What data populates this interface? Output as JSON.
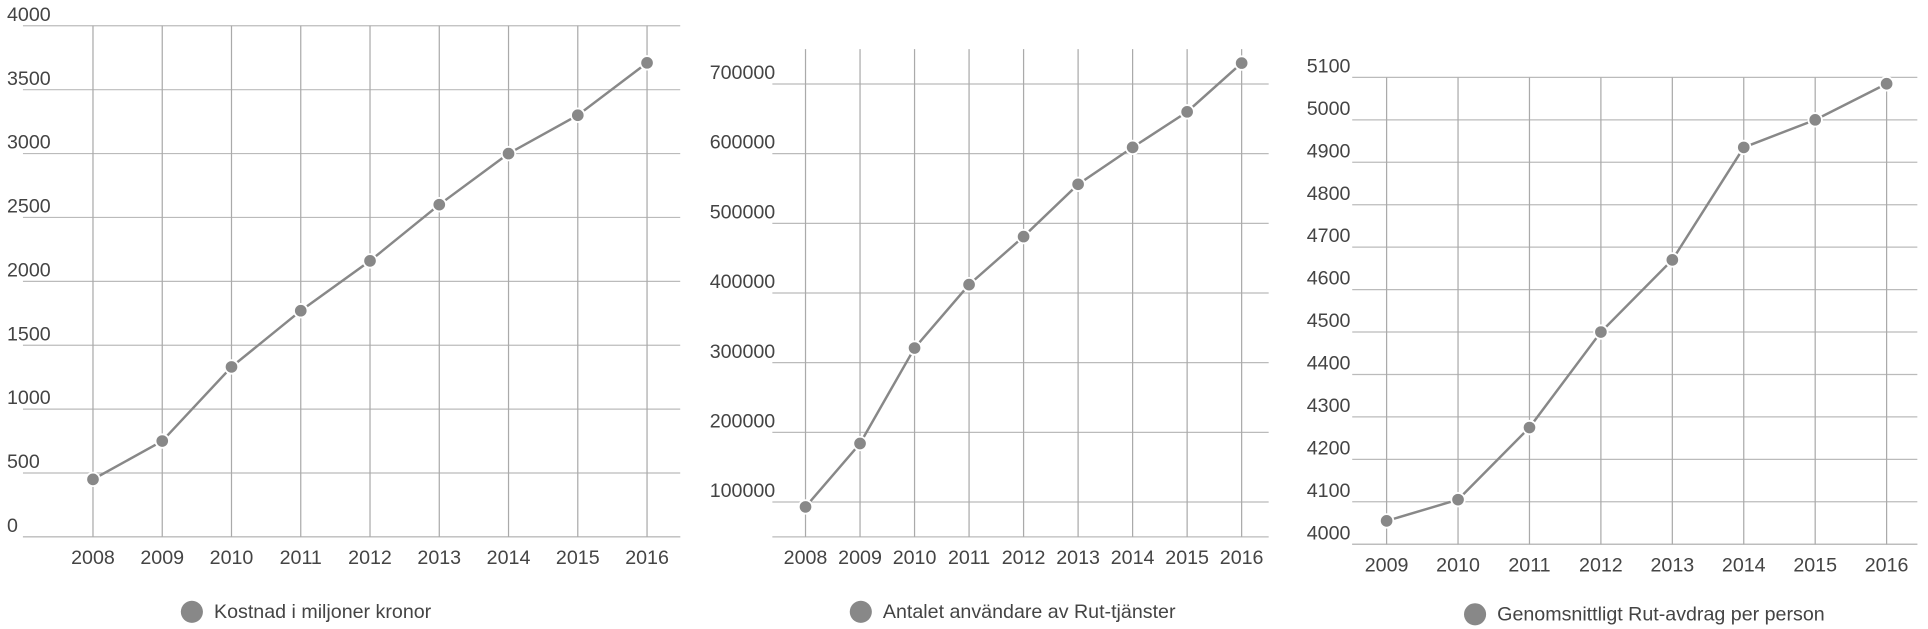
{
  "chart_data": [
    {
      "type": "line",
      "categories": [
        "2008",
        "2009",
        "2010",
        "2011",
        "2012",
        "2013",
        "2014",
        "2015",
        "2016"
      ],
      "series": [
        {
          "name": "Kostnad i miljoner kronor",
          "color": "#888888",
          "values": [
            450,
            750,
            1330,
            1770,
            2160,
            2600,
            3000,
            3300,
            3710
          ]
        }
      ],
      "ylim": [
        0,
        4000
      ],
      "yticks": [
        0,
        500,
        1000,
        1500,
        2000,
        2500,
        3000,
        3500,
        4000
      ],
      "grid": true
    },
    {
      "type": "line",
      "categories": [
        "2008",
        "2009",
        "2010",
        "2011",
        "2012",
        "2013",
        "2014",
        "2015",
        "2016"
      ],
      "series": [
        {
          "name": "Antalet användare av Rut-tjänster",
          "color": "#888888",
          "values": [
            93000,
            184000,
            321000,
            412000,
            481000,
            556000,
            609000,
            660000,
            730000
          ]
        }
      ],
      "ylim": [
        50000,
        750000
      ],
      "yticks": [
        100000,
        200000,
        300000,
        400000,
        500000,
        600000,
        700000
      ],
      "grid": true
    },
    {
      "type": "line",
      "categories": [
        "2009",
        "2010",
        "2011",
        "2012",
        "2013",
        "2014",
        "2015",
        "2016"
      ],
      "series": [
        {
          "name": "Genomsnittligt Rut-avdrag per person",
          "color": "#888888",
          "values": [
            4055,
            4105,
            4275,
            4500,
            4670,
            4935,
            5000,
            5085
          ]
        }
      ],
      "ylim": [
        4000,
        5100
      ],
      "yticks": [
        4000,
        4100,
        4200,
        4300,
        4400,
        4500,
        4600,
        4700,
        4800,
        4900,
        5000,
        5100
      ],
      "grid": true
    }
  ]
}
